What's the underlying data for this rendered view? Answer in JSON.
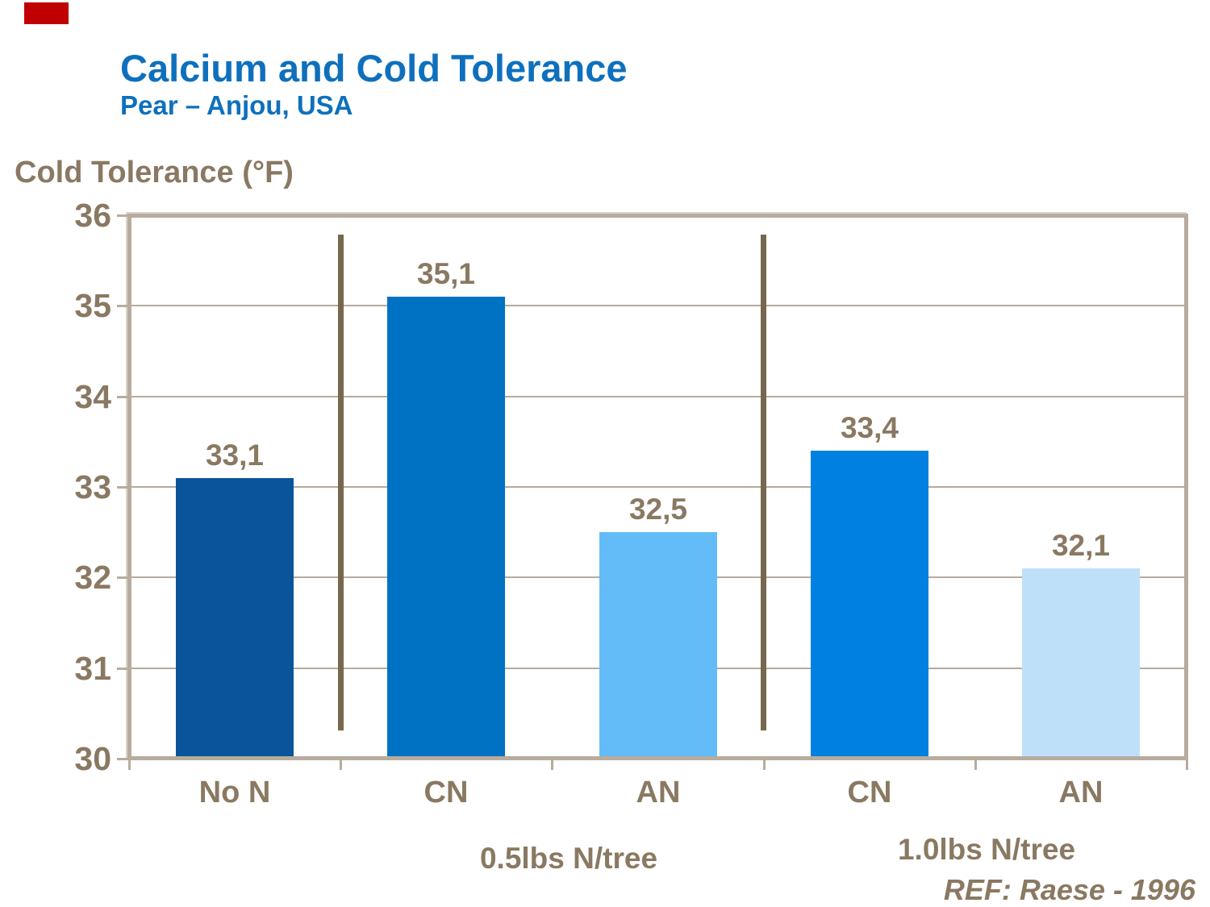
{
  "accent_box": {
    "color": "#C00000"
  },
  "title": {
    "text": "Calcium and Cold Tolerance",
    "subtitle": "Pear – Anjou, USA"
  },
  "axis": {
    "y_title": "Cold Tolerance (°F)"
  },
  "footer": {
    "reference": "REF: Raese - 1996"
  },
  "chart_data": {
    "type": "bar",
    "title": "Calcium and Cold Tolerance",
    "subtitle": "Pear – Anjou, USA",
    "ylabel": "Cold Tolerance (°F)",
    "xlabel": "",
    "ylim": [
      30,
      36
    ],
    "yticks": [
      30,
      31,
      32,
      33,
      34,
      35,
      36
    ],
    "grid": "horizontal-major",
    "legend": "none",
    "decimal_separator": ",",
    "categories": [
      "No N",
      "CN",
      "AN",
      "CN",
      "AN"
    ],
    "values": [
      33.1,
      35.1,
      32.5,
      33.4,
      32.1
    ],
    "value_labels": [
      "33,1",
      "35,1",
      "32,5",
      "33,4",
      "32,1"
    ],
    "bar_colors": [
      "#0A549B",
      "#0072C4",
      "#63BCF8",
      "#0080E0",
      "#BEE0F9"
    ],
    "group_divider_boundaries": [
      1,
      3
    ],
    "groups": [
      {
        "label": "0.5lbs N/tree",
        "span": [
          "CN",
          "AN"
        ]
      },
      {
        "label": "1.0lbs N/tree",
        "span": [
          "CN",
          "AN"
        ]
      }
    ],
    "annotation": "REF: Raese - 1996"
  },
  "colors": {
    "title_blue": "#0E70BD",
    "text_brown": "#8A7962",
    "divider_brown": "#76684F",
    "gridline": "#B5AB9E",
    "plot_border": "#B7AC9E"
  }
}
